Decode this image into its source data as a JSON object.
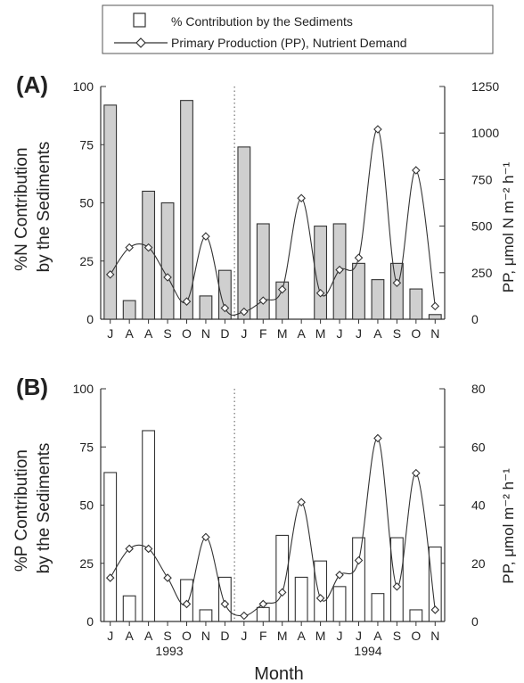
{
  "legend": {
    "bar_label": "% Contribution by the Sediments",
    "line_label": "Primary Production (PP), Nutrient Demand"
  },
  "x_axis": {
    "title": "Month",
    "years": [
      "1993",
      "1994"
    ]
  },
  "colors": {
    "bar_fill_A": "#cfcfcf",
    "bar_fill_B": "#ffffff",
    "stroke": "#333333"
  },
  "chart_data": [
    {
      "panel": "(A)",
      "type": "bar",
      "categories": [
        "J",
        "A",
        "A",
        "S",
        "O",
        "N",
        "D",
        "J",
        "F",
        "M",
        "A",
        "M",
        "J",
        "J",
        "A",
        "S",
        "O",
        "N"
      ],
      "series": [
        {
          "name": "% Contribution by the Sediments",
          "axis": "left",
          "type": "bar",
          "values": [
            92,
            8,
            55,
            50,
            94,
            10,
            21,
            74,
            41,
            16,
            null,
            40,
            41,
            24,
            17,
            24,
            13,
            2
          ]
        },
        {
          "name": "Primary Production (PP), Nutrient Demand",
          "axis": "right",
          "type": "line",
          "values": [
            240,
            385,
            385,
            225,
            95,
            445,
            60,
            40,
            100,
            160,
            650,
            140,
            265,
            330,
            1020,
            195,
            800,
            70
          ]
        }
      ],
      "ylabel": "%N Contribution by the Sediments",
      "ylabel_lines": [
        "%N Contribution",
        "by the Sediments"
      ],
      "y2label": "PP, μmol N m⁻² h⁻¹",
      "ylim": [
        0,
        100
      ],
      "y2lim": [
        0,
        1250
      ],
      "yticks": [
        "0",
        "25",
        "50",
        "75",
        "100"
      ],
      "y2ticks": [
        "0",
        "250",
        "500",
        "750",
        "1000",
        "1250"
      ]
    },
    {
      "panel": "(B)",
      "type": "bar",
      "categories": [
        "J",
        "A",
        "A",
        "S",
        "O",
        "N",
        "D",
        "J",
        "F",
        "M",
        "A",
        "M",
        "J",
        "J",
        "A",
        "S",
        "O",
        "N"
      ],
      "series": [
        {
          "name": "% Contribution by the Sediments",
          "axis": "left",
          "type": "bar",
          "values": [
            64,
            11,
            82,
            null,
            18,
            5,
            19,
            null,
            6,
            37,
            19,
            26,
            15,
            36,
            12,
            36,
            5,
            32
          ]
        },
        {
          "name": "Primary Production (PP), Nutrient Demand",
          "axis": "right",
          "type": "line",
          "values": [
            15,
            25,
            25,
            15,
            6,
            29,
            6,
            2,
            6,
            10,
            41,
            8,
            16,
            21,
            63,
            12,
            51,
            4
          ]
        }
      ],
      "ylabel": "%P Contribution by the Sediments",
      "ylabel_lines": [
        "%P Contribution",
        "by the Sediments"
      ],
      "y2label": "PP, μmol m⁻² h⁻¹",
      "ylim": [
        0,
        100
      ],
      "y2lim": [
        0,
        80
      ],
      "yticks": [
        "0",
        "25",
        "50",
        "75",
        "100"
      ],
      "y2ticks": [
        "0",
        "20",
        "40",
        "60",
        "80"
      ]
    }
  ]
}
